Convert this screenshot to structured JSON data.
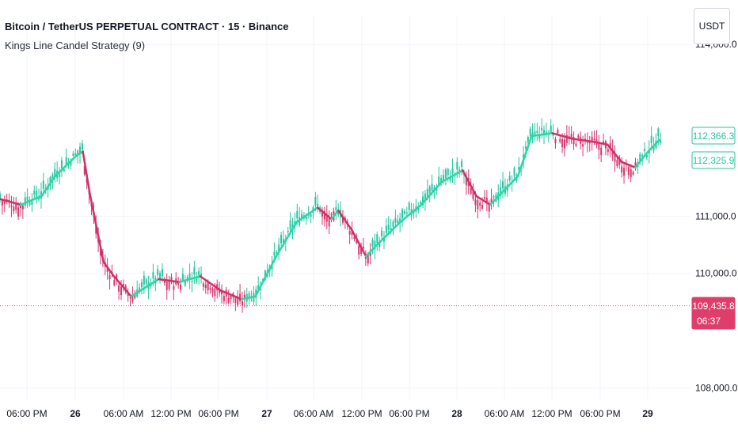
{
  "header": {
    "title": "Bitcoin / TetherUS PERPETUAL CONTRACT · 15 · Binance",
    "indicator": "Kings Line Candel Strategy (9)"
  },
  "currency_button": "USDT",
  "colors": {
    "bull": "#26c6a2",
    "bear": "#d23a6a",
    "line_up": "#2bd6a4",
    "line_down": "#d0306a",
    "grid": "#f0f3fa",
    "axis_text": "#131722"
  },
  "labels": {
    "line_value": "112,366.3",
    "line_value2": "112,325.9",
    "current_price": "109,435.8",
    "countdown": "06:37"
  },
  "chart_data": {
    "type": "candlestick",
    "title": "Bitcoin / TetherUS PERPETUAL CONTRACT · 15 · Binance",
    "y_ticks": [
      "114,000.0",
      "111,000.0",
      "110,000.0",
      "108,000.0"
    ],
    "x_ticks": [
      "06:00 PM",
      "26",
      "06:00 AM",
      "12:00 PM",
      "06:00 PM",
      "27",
      "06:00 AM",
      "12:00 PM",
      "06:00 PM",
      "28",
      "06:00 AM",
      "12:00 PM",
      "06:00 PM",
      "29"
    ],
    "ylim": [
      107800,
      114500
    ],
    "current_price": 109435.8,
    "kings_line": [
      [
        0,
        111300
      ],
      [
        0.03,
        111200
      ],
      [
        0.06,
        111350
      ],
      [
        0.08,
        111700
      ],
      [
        0.11,
        112050
      ],
      [
        0.12,
        112130
      ],
      [
        0.13,
        111400
      ],
      [
        0.15,
        110200
      ],
      [
        0.165,
        109950
      ],
      [
        0.19,
        109600
      ],
      [
        0.21,
        109750
      ],
      [
        0.23,
        109900
      ],
      [
        0.26,
        109850
      ],
      [
        0.29,
        109950
      ],
      [
        0.32,
        109700
      ],
      [
        0.35,
        109550
      ],
      [
        0.37,
        109600
      ],
      [
        0.4,
        110300
      ],
      [
        0.43,
        110900
      ],
      [
        0.46,
        111150
      ],
      [
        0.48,
        110950
      ],
      [
        0.49,
        111100
      ],
      [
        0.51,
        110750
      ],
      [
        0.53,
        110300
      ],
      [
        0.55,
        110550
      ],
      [
        0.58,
        110900
      ],
      [
        0.61,
        111200
      ],
      [
        0.64,
        111600
      ],
      [
        0.67,
        111800
      ],
      [
        0.69,
        111350
      ],
      [
        0.71,
        111200
      ],
      [
        0.73,
        111450
      ],
      [
        0.75,
        111700
      ],
      [
        0.77,
        112400
      ],
      [
        0.8,
        112450
      ],
      [
        0.83,
        112350
      ],
      [
        0.86,
        112300
      ],
      [
        0.88,
        112250
      ],
      [
        0.9,
        111950
      ],
      [
        0.92,
        111850
      ],
      [
        0.94,
        112150
      ],
      [
        0.955,
        112330
      ]
    ]
  }
}
